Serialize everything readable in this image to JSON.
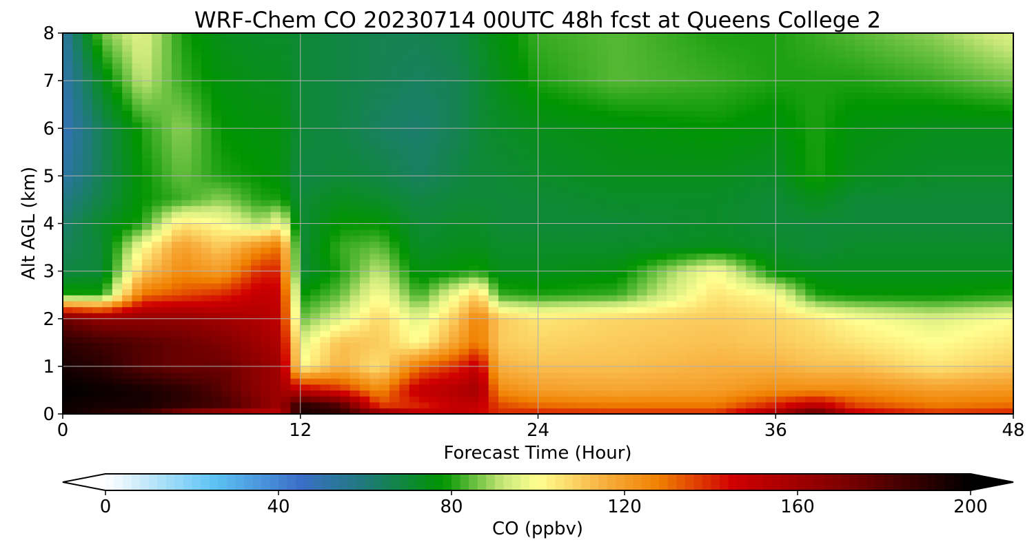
{
  "chart_data": {
    "type": "heatmap",
    "title": "WRF-Chem CO  20230714 00UTC 48h fcst at Queens College 2",
    "xlabel": "Forecast Time (Hour)",
    "ylabel": "Alt AGL (km)",
    "xlim": [
      0,
      48
    ],
    "ylim": [
      0,
      8
    ],
    "xticks": [
      0,
      12,
      24,
      36,
      48
    ],
    "yticks": [
      0,
      1,
      2,
      3,
      4,
      5,
      6,
      7,
      8
    ],
    "grid": true,
    "colorbar": {
      "label": "CO  (ppbv)",
      "range": [
        0,
        200
      ],
      "ticks": [
        0,
        40,
        80,
        120,
        160,
        200
      ],
      "extend": "both",
      "placement": "bottom",
      "colormap": [
        [
          0,
          "#ffffff"
        ],
        [
          25,
          "#5ec3f4"
        ],
        [
          45,
          "#3a6fc8"
        ],
        [
          60,
          "#1f7a7a"
        ],
        [
          78,
          "#009400"
        ],
        [
          92,
          "#c9e87a"
        ],
        [
          100,
          "#ffff90"
        ],
        [
          115,
          "#f8b040"
        ],
        [
          128,
          "#f08000"
        ],
        [
          145,
          "#d00000"
        ],
        [
          170,
          "#800000"
        ],
        [
          200,
          "#000000"
        ]
      ]
    },
    "x": [
      0,
      2,
      4,
      6,
      8,
      10,
      11,
      12,
      14,
      16,
      18,
      20,
      21,
      22,
      24,
      28,
      33,
      36,
      38,
      40,
      44,
      48
    ],
    "y": [
      0,
      0.2,
      0.5,
      1,
      1.5,
      2,
      2.5,
      3,
      3.5,
      4,
      4.5,
      5,
      6,
      7,
      8
    ],
    "z": [
      [
        198,
        190,
        185,
        165,
        155,
        150,
        150,
        195,
        190,
        170,
        150,
        150,
        145,
        140,
        142,
        140,
        140,
        160,
        185,
        150,
        140,
        142
      ],
      [
        198,
        195,
        195,
        190,
        185,
        170,
        160,
        190,
        180,
        135,
        140,
        150,
        150,
        135,
        130,
        128,
        128,
        140,
        150,
        135,
        128,
        130
      ],
      [
        200,
        198,
        195,
        190,
        180,
        165,
        160,
        150,
        140,
        125,
        150,
        155,
        160,
        125,
        120,
        118,
        120,
        125,
        125,
        125,
        120,
        122
      ],
      [
        195,
        190,
        180,
        175,
        175,
        165,
        160,
        100,
        115,
        105,
        130,
        140,
        150,
        115,
        112,
        112,
        115,
        115,
        112,
        112,
        105,
        110
      ],
      [
        190,
        185,
        180,
        175,
        170,
        160,
        155,
        95,
        112,
        110,
        100,
        120,
        130,
        110,
        108,
        110,
        112,
        110,
        108,
        105,
        100,
        105
      ],
      [
        175,
        165,
        165,
        165,
        160,
        155,
        150,
        85,
        95,
        108,
        95,
        112,
        128,
        110,
        105,
        108,
        110,
        108,
        105,
        100,
        95,
        100
      ],
      [
        80,
        80,
        130,
        135,
        140,
        150,
        148,
        78,
        85,
        100,
        82,
        100,
        110,
        82,
        80,
        82,
        105,
        100,
        80,
        78,
        78,
        80
      ],
      [
        68,
        70,
        110,
        125,
        120,
        140,
        140,
        70,
        80,
        92,
        75,
        78,
        80,
        74,
        74,
        76,
        100,
        76,
        74,
        74,
        74,
        74
      ],
      [
        65,
        70,
        100,
        120,
        110,
        125,
        130,
        70,
        82,
        85,
        72,
        74,
        74,
        72,
        72,
        72,
        74,
        72,
        70,
        72,
        72,
        72
      ],
      [
        62,
        72,
        80,
        105,
        100,
        90,
        100,
        70,
        78,
        78,
        70,
        72,
        72,
        70,
        70,
        70,
        72,
        70,
        70,
        70,
        70,
        70
      ],
      [
        58,
        68,
        78,
        82,
        88,
        80,
        80,
        70,
        74,
        72,
        68,
        70,
        70,
        70,
        70,
        72,
        72,
        70,
        74,
        70,
        70,
        70
      ],
      [
        52,
        66,
        78,
        85,
        80,
        78,
        76,
        68,
        70,
        68,
        64,
        68,
        70,
        70,
        72,
        74,
        74,
        72,
        80,
        74,
        72,
        72
      ],
      [
        48,
        66,
        80,
        88,
        78,
        76,
        76,
        70,
        68,
        64,
        62,
        66,
        70,
        72,
        74,
        76,
        78,
        76,
        80,
        76,
        74,
        74
      ],
      [
        50,
        74,
        92,
        82,
        76,
        74,
        74,
        70,
        68,
        66,
        64,
        66,
        70,
        74,
        80,
        84,
        82,
        80,
        80,
        80,
        82,
        86
      ],
      [
        52,
        86,
        96,
        80,
        74,
        72,
        72,
        70,
        68,
        66,
        66,
        68,
        72,
        76,
        82,
        84,
        80,
        80,
        82,
        84,
        88,
        95
      ]
    ]
  }
}
